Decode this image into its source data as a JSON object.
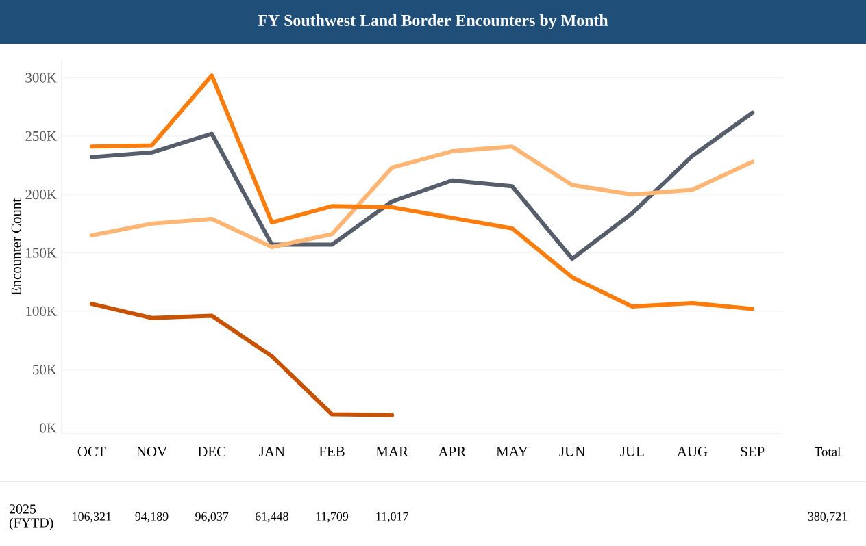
{
  "chart_data": {
    "type": "line",
    "title": "FY Southwest Land Border Encounters by Month",
    "ylabel": "Encounter Count",
    "categories": [
      "OCT",
      "NOV",
      "DEC",
      "JAN",
      "FEB",
      "MAR",
      "APR",
      "MAY",
      "JUN",
      "JUL",
      "AUG",
      "SEP"
    ],
    "series": [
      {
        "color": "#565d6b",
        "values": [
          232000,
          236000,
          252000,
          157000,
          157000,
          194000,
          212000,
          207000,
          145000,
          184000,
          233000,
          270000
        ]
      },
      {
        "color": "#ffb574",
        "values": [
          165000,
          175000,
          179000,
          155000,
          166000,
          223000,
          237000,
          241000,
          208000,
          200000,
          204000,
          228000
        ]
      },
      {
        "color": "#fc7d0b",
        "values": [
          241000,
          242000,
          302000,
          176000,
          190000,
          189000,
          180000,
          171000,
          129000,
          104000,
          107000,
          102000
        ]
      },
      {
        "name": "2025 (FYTD)",
        "color": "#c85200",
        "values": [
          106321,
          94189,
          96037,
          61448,
          11709,
          11017,
          null,
          null,
          null,
          null,
          null,
          null
        ],
        "value_labels": [
          "106,321",
          "94,189",
          "96,037",
          "61,448",
          "11,709",
          "11,017",
          null,
          null,
          null,
          null,
          null,
          null
        ]
      }
    ],
    "ylim": [
      -5000,
      315000
    ],
    "yticks": [
      {
        "value": 0,
        "label": "0K"
      },
      {
        "value": 50000,
        "label": "50K"
      },
      {
        "value": 100000,
        "label": "100K"
      },
      {
        "value": 150000,
        "label": "150K"
      },
      {
        "value": 200000,
        "label": "200K"
      },
      {
        "value": 250000,
        "label": "250K"
      },
      {
        "value": 300000,
        "label": "300K"
      }
    ],
    "grid": "y",
    "legend": false,
    "line_style": "solid",
    "annotations": [
      "Total",
      "380,721"
    ]
  }
}
